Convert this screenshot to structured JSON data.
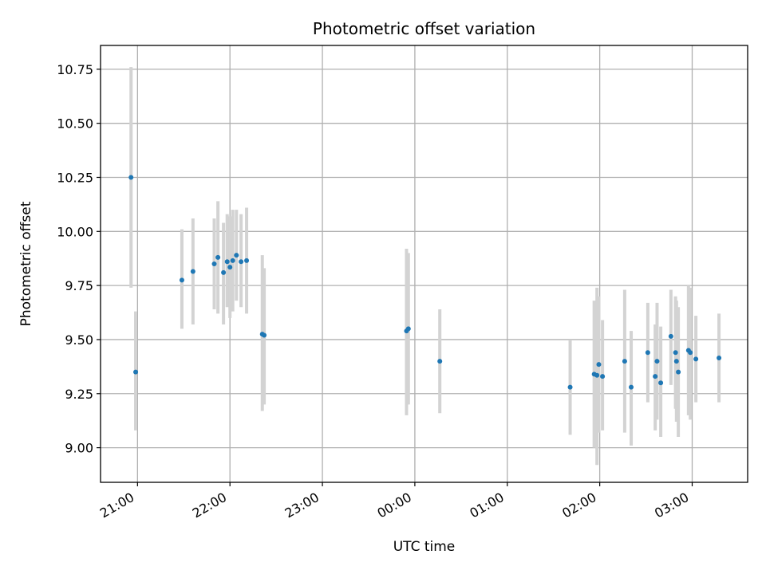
{
  "chart_data": {
    "type": "scatter",
    "title": "Photometric offset variation",
    "xlabel": "UTC time",
    "ylabel": "Photometric offset",
    "x_tick_labels": [
      "21:00",
      "22:00",
      "23:00",
      "00:00",
      "01:00",
      "02:00",
      "03:00"
    ],
    "x_tick_values": [
      21.0,
      22.0,
      23.0,
      24.0,
      25.0,
      26.0,
      27.0
    ],
    "y_ticks": [
      9.0,
      9.25,
      9.5,
      9.75,
      10.0,
      10.25,
      10.5,
      10.75
    ],
    "y_tick_labels": [
      "9.00",
      "9.25",
      "9.50",
      "9.75",
      "10.00",
      "10.25",
      "10.50",
      "10.75"
    ],
    "xlim": [
      20.6,
      27.6
    ],
    "ylim": [
      8.84,
      10.86
    ],
    "grid": true,
    "colors": {
      "point": "#1f77b4",
      "errorbar": "#d3d3d3",
      "grid": "#b0b0b0"
    },
    "x_unit_note_hours_utc": "x values are hours of UTC time; values above 24 are after midnight",
    "points": [
      {
        "x": 20.93,
        "y": 10.25,
        "ylo": 9.74,
        "yhi": 10.76
      },
      {
        "x": 20.98,
        "y": 9.35,
        "ylo": 9.08,
        "yhi": 9.63
      },
      {
        "x": 21.48,
        "y": 9.775,
        "ylo": 9.55,
        "yhi": 10.01
      },
      {
        "x": 21.6,
        "y": 9.815,
        "ylo": 9.57,
        "yhi": 10.06
      },
      {
        "x": 21.83,
        "y": 9.85,
        "ylo": 9.64,
        "yhi": 10.06
      },
      {
        "x": 21.87,
        "y": 9.88,
        "ylo": 9.62,
        "yhi": 10.14
      },
      {
        "x": 21.93,
        "y": 9.81,
        "ylo": 9.57,
        "yhi": 10.04
      },
      {
        "x": 21.97,
        "y": 9.86,
        "ylo": 9.65,
        "yhi": 10.08
      },
      {
        "x": 22.0,
        "y": 9.835,
        "ylo": 9.6,
        "yhi": 10.07
      },
      {
        "x": 22.03,
        "y": 9.865,
        "ylo": 9.63,
        "yhi": 10.1
      },
      {
        "x": 22.07,
        "y": 9.89,
        "ylo": 9.68,
        "yhi": 10.1
      },
      {
        "x": 22.12,
        "y": 9.86,
        "ylo": 9.65,
        "yhi": 10.08
      },
      {
        "x": 22.18,
        "y": 9.865,
        "ylo": 9.62,
        "yhi": 10.11
      },
      {
        "x": 22.35,
        "y": 9.525,
        "ylo": 9.17,
        "yhi": 9.89
      },
      {
        "x": 22.37,
        "y": 9.52,
        "ylo": 9.2,
        "yhi": 9.83
      },
      {
        "x": 23.91,
        "y": 9.54,
        "ylo": 9.15,
        "yhi": 9.92
      },
      {
        "x": 23.93,
        "y": 9.55,
        "ylo": 9.2,
        "yhi": 9.9
      },
      {
        "x": 24.27,
        "y": 9.4,
        "ylo": 9.16,
        "yhi": 9.64
      },
      {
        "x": 25.68,
        "y": 9.28,
        "ylo": 9.06,
        "yhi": 9.5
      },
      {
        "x": 25.94,
        "y": 9.34,
        "ylo": 9.0,
        "yhi": 9.68
      },
      {
        "x": 25.97,
        "y": 9.335,
        "ylo": 8.92,
        "yhi": 9.74
      },
      {
        "x": 25.99,
        "y": 9.385,
        "ylo": 9.07,
        "yhi": 9.7
      },
      {
        "x": 26.03,
        "y": 9.33,
        "ylo": 9.08,
        "yhi": 9.59
      },
      {
        "x": 26.27,
        "y": 9.4,
        "ylo": 9.07,
        "yhi": 9.73
      },
      {
        "x": 26.34,
        "y": 9.28,
        "ylo": 9.01,
        "yhi": 9.54
      },
      {
        "x": 26.52,
        "y": 9.44,
        "ylo": 9.21,
        "yhi": 9.67
      },
      {
        "x": 26.6,
        "y": 9.33,
        "ylo": 9.08,
        "yhi": 9.57
      },
      {
        "x": 26.62,
        "y": 9.4,
        "ylo": 9.13,
        "yhi": 9.67
      },
      {
        "x": 26.66,
        "y": 9.3,
        "ylo": 9.05,
        "yhi": 9.56
      },
      {
        "x": 26.77,
        "y": 9.515,
        "ylo": 9.29,
        "yhi": 9.73
      },
      {
        "x": 26.82,
        "y": 9.44,
        "ylo": 9.18,
        "yhi": 9.7
      },
      {
        "x": 26.83,
        "y": 9.4,
        "ylo": 9.12,
        "yhi": 9.68
      },
      {
        "x": 26.85,
        "y": 9.35,
        "ylo": 9.05,
        "yhi": 9.65
      },
      {
        "x": 26.96,
        "y": 9.45,
        "ylo": 9.15,
        "yhi": 9.75
      },
      {
        "x": 26.98,
        "y": 9.44,
        "ylo": 9.13,
        "yhi": 9.74
      },
      {
        "x": 27.04,
        "y": 9.41,
        "ylo": 9.21,
        "yhi": 9.61
      },
      {
        "x": 27.29,
        "y": 9.415,
        "ylo": 9.21,
        "yhi": 9.62
      }
    ]
  }
}
